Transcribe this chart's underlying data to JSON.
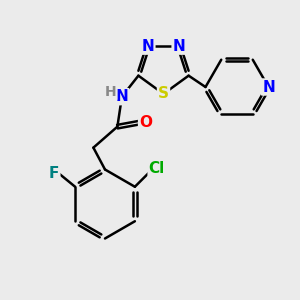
{
  "bg_color": "#EBEBEB",
  "atom_colors": {
    "N": "#0000FF",
    "S": "#CCCC00",
    "O": "#FF0000",
    "F": "#008080",
    "Cl": "#00AA00",
    "H": "#888888",
    "C": "#000000"
  },
  "bond_width": 1.8,
  "font_size": 11
}
